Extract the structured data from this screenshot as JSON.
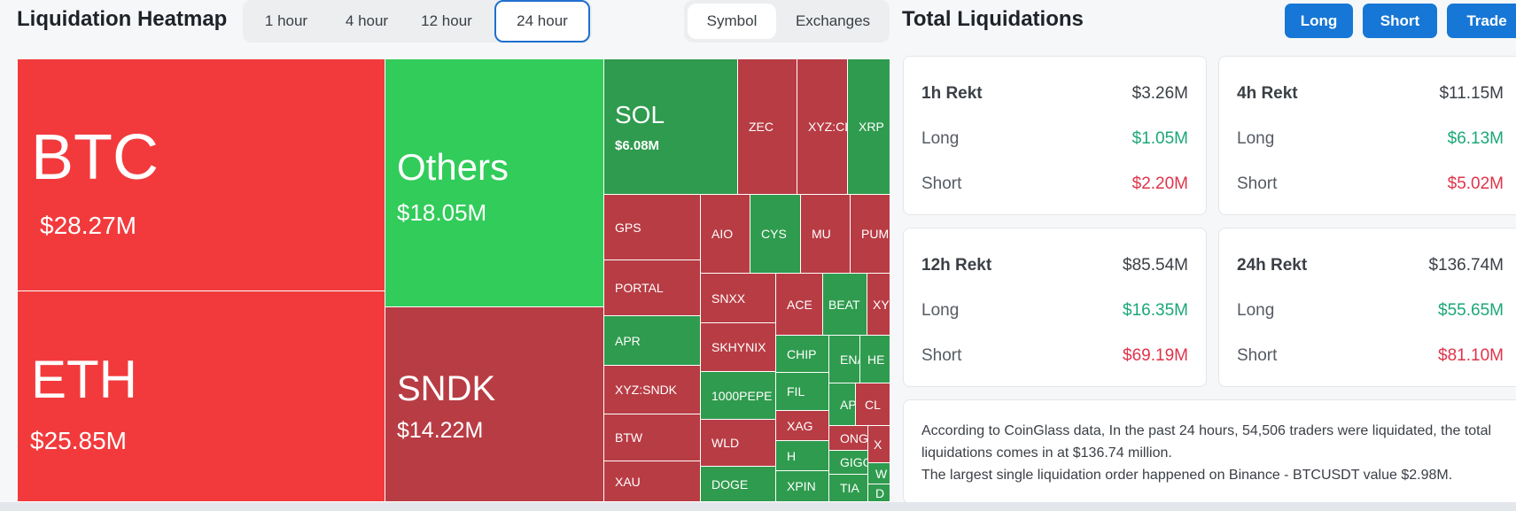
{
  "heatmap_title": "Liquidation Heatmap",
  "timeframes": [
    "1 hour",
    "4 hour",
    "12 hour",
    "24 hour"
  ],
  "active_timeframe": "24 hour",
  "view_modes": [
    "Symbol",
    "Exchanges"
  ],
  "active_view": "Symbol",
  "total_title": "Total Liquidations",
  "actions": {
    "long": "Long",
    "short": "Short",
    "trade": "Trade"
  },
  "colors": {
    "accent": "#1777d6",
    "dark_red": "#b83c44",
    "bright_red": "#f23a3c",
    "dark_green": "#2f9b4e",
    "bright_green": "#31cc5a",
    "long_value": "#1ba779",
    "short_value": "#e0334a"
  },
  "tiles": [
    {
      "symbol": "BTC",
      "value": "$28.27M",
      "color": "R"
    },
    {
      "symbol": "ETH",
      "value": "$25.85M",
      "color": "R"
    },
    {
      "symbol": "Others",
      "value": "$18.05M",
      "color": "G"
    },
    {
      "symbol": "SNDK",
      "value": "$14.22M",
      "color": "r"
    },
    {
      "symbol": "SOL",
      "value": "$6.08M",
      "color": "g"
    },
    {
      "symbol": "ZEC",
      "color": "r"
    },
    {
      "symbol": "XYZ:CL",
      "color": "r"
    },
    {
      "symbol": "XRP",
      "color": "g"
    },
    {
      "symbol": "GPS",
      "color": "r"
    },
    {
      "symbol": "AIO",
      "color": "r"
    },
    {
      "symbol": "CYS",
      "color": "g"
    },
    {
      "symbol": "MU",
      "color": "r"
    },
    {
      "symbol": "PUMP",
      "color": "r"
    },
    {
      "symbol": "PORTAL",
      "color": "r"
    },
    {
      "symbol": "SNXX",
      "color": "r"
    },
    {
      "symbol": "ACE",
      "color": "g"
    },
    {
      "symbol": "BEAT",
      "color": "g"
    },
    {
      "symbol": "XYZ",
      "color": "r"
    },
    {
      "symbol": "APR",
      "color": "g"
    },
    {
      "symbol": "SKHYNIX",
      "color": "r"
    },
    {
      "symbol": "CHIP",
      "color": "g"
    },
    {
      "symbol": "ENA",
      "color": "g"
    },
    {
      "symbol": "HE",
      "color": "g"
    },
    {
      "symbol": "XYZ:SNDK",
      "color": "r"
    },
    {
      "symbol": "1000PEPE",
      "color": "g"
    },
    {
      "symbol": "FIL",
      "color": "g"
    },
    {
      "symbol": "APT",
      "color": "g"
    },
    {
      "symbol": "CL",
      "color": "r"
    },
    {
      "symbol": "BTW",
      "color": "r"
    },
    {
      "symbol": "WLD",
      "color": "r"
    },
    {
      "symbol": "XAG",
      "color": "r"
    },
    {
      "symbol": "ONG",
      "color": "r"
    },
    {
      "symbol": "X",
      "color": "r"
    },
    {
      "symbol": "H",
      "color": "g"
    },
    {
      "symbol": "GIGGLE",
      "color": "g"
    },
    {
      "symbol": "W",
      "color": "g"
    },
    {
      "symbol": "XAU",
      "color": "r"
    },
    {
      "symbol": "DOGE",
      "color": "g"
    },
    {
      "symbol": "XPIN",
      "color": "g"
    },
    {
      "symbol": "TIA",
      "color": "g"
    },
    {
      "symbol": "D",
      "color": "g"
    }
  ],
  "rekt_cards": [
    {
      "label": "1h Rekt",
      "total": "$3.26M",
      "long_label": "Long",
      "long": "$1.05M",
      "short_label": "Short",
      "short": "$2.20M"
    },
    {
      "label": "4h Rekt",
      "total": "$11.15M",
      "long_label": "Long",
      "long": "$6.13M",
      "short_label": "Short",
      "short": "$5.02M"
    },
    {
      "label": "12h Rekt",
      "total": "$85.54M",
      "long_label": "Long",
      "long": "$16.35M",
      "short_label": "Short",
      "short": "$69.19M"
    },
    {
      "label": "24h Rekt",
      "total": "$136.74M",
      "long_label": "Long",
      "long": "$55.65M",
      "short_label": "Short",
      "short": "$81.10M"
    }
  ],
  "summary_line1": "According to CoinGlass data, In the past 24 hours, 54,506 traders were liquidated, the total liquidations comes in at $136.74 million.",
  "summary_line2": "The largest single liquidation order happened on Binance - BTCUSDT value $2.98M."
}
